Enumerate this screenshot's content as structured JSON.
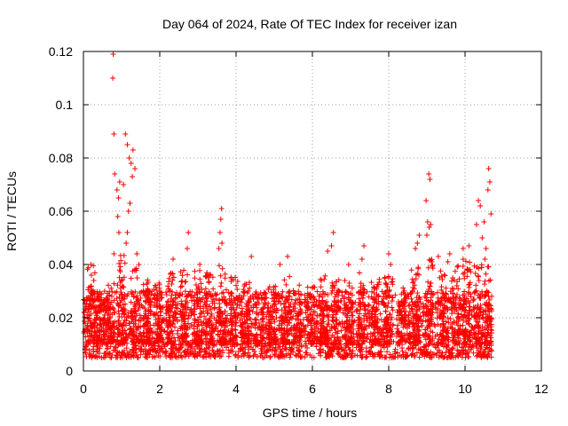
{
  "chart_data": {
    "type": "scatter",
    "title": "Day 064 of 2024, Rate Of TEC Index for receiver izan",
    "xlabel": "GPS time / hours",
    "ylabel": "ROTI / TECUs",
    "xlim": [
      0,
      12
    ],
    "ylim": [
      0,
      0.12
    ],
    "xticks": [
      0,
      2,
      4,
      6,
      8,
      10,
      12
    ],
    "xtick_labels": [
      "0",
      "2",
      "4",
      "6",
      "8",
      "10",
      "12"
    ],
    "yticks": [
      0,
      0.02,
      0.04,
      0.06,
      0.08,
      0.1,
      0.12
    ],
    "ytick_labels": [
      "0",
      "0.02",
      "0.04",
      "0.06",
      "0.08",
      "0.1",
      "0.12"
    ],
    "grid": true,
    "marker": "+",
    "color": "#ff0000",
    "data_extent_hours": [
      0,
      10.7
    ],
    "background_band": {
      "low": 0.005,
      "high": 0.03
    },
    "notable_points": [
      {
        "x": 0.78,
        "y": 0.119
      },
      {
        "x": 0.77,
        "y": 0.11
      },
      {
        "x": 0.8,
        "y": 0.089
      },
      {
        "x": 1.1,
        "y": 0.089
      },
      {
        "x": 1.15,
        "y": 0.085
      },
      {
        "x": 1.3,
        "y": 0.083
      },
      {
        "x": 1.2,
        "y": 0.08
      },
      {
        "x": 1.25,
        "y": 0.078
      },
      {
        "x": 1.35,
        "y": 0.076
      },
      {
        "x": 1.28,
        "y": 0.073
      },
      {
        "x": 0.82,
        "y": 0.074
      },
      {
        "x": 0.95,
        "y": 0.071
      },
      {
        "x": 1.05,
        "y": 0.07
      },
      {
        "x": 0.88,
        "y": 0.068
      },
      {
        "x": 0.92,
        "y": 0.065
      },
      {
        "x": 1.22,
        "y": 0.063
      },
      {
        "x": 1.18,
        "y": 0.06
      },
      {
        "x": 0.9,
        "y": 0.058
      },
      {
        "x": 0.93,
        "y": 0.052
      },
      {
        "x": 1.15,
        "y": 0.052
      },
      {
        "x": 1.12,
        "y": 0.048
      },
      {
        "x": 0.8,
        "y": 0.044
      },
      {
        "x": 1.4,
        "y": 0.044
      },
      {
        "x": 2.75,
        "y": 0.052
      },
      {
        "x": 2.72,
        "y": 0.046
      },
      {
        "x": 3.62,
        "y": 0.061
      },
      {
        "x": 3.6,
        "y": 0.057
      },
      {
        "x": 3.58,
        "y": 0.052
      },
      {
        "x": 3.63,
        "y": 0.048
      },
      {
        "x": 3.55,
        "y": 0.046
      },
      {
        "x": 2.35,
        "y": 0.042
      },
      {
        "x": 3.05,
        "y": 0.04
      },
      {
        "x": 4.4,
        "y": 0.043
      },
      {
        "x": 5.35,
        "y": 0.043
      },
      {
        "x": 5.15,
        "y": 0.04
      },
      {
        "x": 6.55,
        "y": 0.052
      },
      {
        "x": 6.5,
        "y": 0.047
      },
      {
        "x": 6.4,
        "y": 0.045
      },
      {
        "x": 7.35,
        "y": 0.047
      },
      {
        "x": 7.3,
        "y": 0.042
      },
      {
        "x": 8.0,
        "y": 0.044
      },
      {
        "x": 8.05,
        "y": 0.04
      },
      {
        "x": 6.95,
        "y": 0.04
      },
      {
        "x": 8.8,
        "y": 0.051
      },
      {
        "x": 8.75,
        "y": 0.048
      },
      {
        "x": 8.7,
        "y": 0.046
      },
      {
        "x": 9.05,
        "y": 0.074
      },
      {
        "x": 9.08,
        "y": 0.072
      },
      {
        "x": 8.98,
        "y": 0.064
      },
      {
        "x": 9.02,
        "y": 0.056
      },
      {
        "x": 9.06,
        "y": 0.054
      },
      {
        "x": 9.1,
        "y": 0.055
      },
      {
        "x": 9.0,
        "y": 0.051
      },
      {
        "x": 9.3,
        "y": 0.043
      },
      {
        "x": 9.6,
        "y": 0.044
      },
      {
        "x": 9.55,
        "y": 0.041
      },
      {
        "x": 9.95,
        "y": 0.046
      },
      {
        "x": 10.1,
        "y": 0.047
      },
      {
        "x": 10.35,
        "y": 0.064
      },
      {
        "x": 10.4,
        "y": 0.062
      },
      {
        "x": 10.3,
        "y": 0.055
      },
      {
        "x": 10.5,
        "y": 0.056
      },
      {
        "x": 10.45,
        "y": 0.05
      },
      {
        "x": 10.62,
        "y": 0.076
      },
      {
        "x": 10.65,
        "y": 0.071
      },
      {
        "x": 10.6,
        "y": 0.068
      },
      {
        "x": 10.68,
        "y": 0.059
      },
      {
        "x": 10.55,
        "y": 0.046
      },
      {
        "x": 10.52,
        "y": 0.042
      }
    ],
    "bursts": [
      {
        "x": 0.2,
        "peak": 0.04
      },
      {
        "x": 0.45,
        "peak": 0.03
      },
      {
        "x": 0.7,
        "peak": 0.033
      },
      {
        "x": 1.0,
        "peak": 0.045
      },
      {
        "x": 1.35,
        "peak": 0.04
      },
      {
        "x": 1.65,
        "peak": 0.035
      },
      {
        "x": 1.95,
        "peak": 0.033
      },
      {
        "x": 2.3,
        "peak": 0.037
      },
      {
        "x": 2.65,
        "peak": 0.038
      },
      {
        "x": 3.0,
        "peak": 0.038
      },
      {
        "x": 3.3,
        "peak": 0.037
      },
      {
        "x": 3.65,
        "peak": 0.04
      },
      {
        "x": 3.95,
        "peak": 0.036
      },
      {
        "x": 4.25,
        "peak": 0.034
      },
      {
        "x": 4.6,
        "peak": 0.03
      },
      {
        "x": 4.95,
        "peak": 0.034
      },
      {
        "x": 5.3,
        "peak": 0.036
      },
      {
        "x": 5.6,
        "peak": 0.033
      },
      {
        "x": 5.95,
        "peak": 0.032
      },
      {
        "x": 6.3,
        "peak": 0.038
      },
      {
        "x": 6.6,
        "peak": 0.036
      },
      {
        "x": 6.95,
        "peak": 0.035
      },
      {
        "x": 7.3,
        "peak": 0.037
      },
      {
        "x": 7.65,
        "peak": 0.035
      },
      {
        "x": 8.0,
        "peak": 0.036
      },
      {
        "x": 8.35,
        "peak": 0.032
      },
      {
        "x": 8.7,
        "peak": 0.04
      },
      {
        "x": 9.05,
        "peak": 0.042
      },
      {
        "x": 9.4,
        "peak": 0.038
      },
      {
        "x": 9.75,
        "peak": 0.04
      },
      {
        "x": 10.05,
        "peak": 0.042
      },
      {
        "x": 10.35,
        "peak": 0.04
      },
      {
        "x": 10.6,
        "peak": 0.04
      }
    ]
  }
}
